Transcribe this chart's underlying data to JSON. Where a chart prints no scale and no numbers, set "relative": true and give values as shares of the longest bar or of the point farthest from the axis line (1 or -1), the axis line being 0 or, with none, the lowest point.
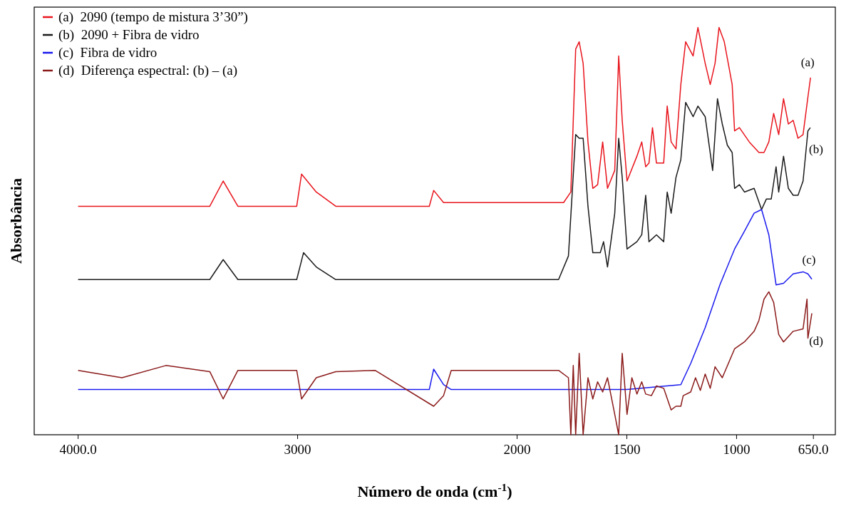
{
  "chart_data": {
    "type": "line",
    "relative": true,
    "xlabel": "Número de onda (cm$^{-1}$)",
    "ylabel": "Absorbância",
    "xlim": [
      4200,
      550
    ],
    "xticks": [
      {
        "value": 4000,
        "label": "4000.0"
      },
      3000,
      2000,
      1500,
      1000,
      {
        "value": 650,
        "label": "650.0"
      }
    ],
    "grid": false,
    "legend": "top left",
    "marker": "none",
    "line_style": "solid",
    "series": [
      {
        "name": "(a)  2090 (tempo de mistura 3’30”)",
        "color": "#e8141c",
        "x": [
          4000,
          3400,
          3339,
          3272,
          3004,
          2982,
          2915,
          2826,
          2400,
          2380,
          2335,
          1811,
          1788,
          1755,
          1733,
          1717,
          1699,
          1677,
          1655,
          1633,
          1610,
          1588,
          1555,
          1537,
          1521,
          1499,
          1454,
          1432,
          1414,
          1399,
          1383,
          1365,
          1332,
          1316,
          1298,
          1276,
          1254,
          1232,
          1198,
          1176,
          1143,
          1120,
          1098,
          1080,
          1056,
          1020,
          1009,
          987,
          942,
          898,
          875,
          853,
          831,
          808,
          786,
          764,
          742,
          720,
          697,
          674,
          663
        ],
        "values": [
          0.561,
          0.561,
          0.623,
          0.561,
          0.561,
          0.64,
          0.596,
          0.561,
          0.561,
          0.6,
          0.57,
          0.57,
          0.57,
          0.596,
          0.947,
          0.965,
          0.912,
          0.719,
          0.605,
          0.614,
          0.719,
          0.605,
          0.649,
          0.93,
          0.772,
          0.623,
          0.684,
          0.719,
          0.658,
          0.667,
          0.754,
          0.667,
          0.667,
          0.807,
          0.719,
          0.702,
          0.86,
          0.965,
          0.93,
          1,
          0.912,
          0.86,
          0.912,
          1,
          0.965,
          0.86,
          0.746,
          0.754,
          0.719,
          0.693,
          0.693,
          0.719,
          0.789,
          0.737,
          0.825,
          0.763,
          0.772,
          0.728,
          0.737,
          0.833,
          0.877
        ]
      },
      {
        "name": "(b)  2090 + Fibra de vidro",
        "color": "#1a1a1a",
        "x": [
          4000,
          3400,
          3339,
          3272,
          3004,
          2973,
          2915,
          2826,
          1811,
          1766,
          1733,
          1717,
          1699,
          1677,
          1655,
          1621,
          1606,
          1588,
          1555,
          1537,
          1521,
          1499,
          1454,
          1432,
          1414,
          1399,
          1365,
          1332,
          1316,
          1298,
          1276,
          1254,
          1232,
          1198,
          1176,
          1143,
          1109,
          1087,
          1065,
          1042,
          1020,
          1009,
          987,
          964,
          920,
          886,
          864,
          842,
          820,
          808,
          786,
          764,
          742,
          720,
          697,
          675,
          664
        ],
        "values": [
          0.381,
          0.381,
          0.43,
          0.381,
          0.381,
          0.447,
          0.412,
          0.381,
          0.381,
          0.439,
          0.737,
          0.728,
          0.728,
          0.561,
          0.447,
          0.447,
          0.474,
          0.412,
          0.544,
          0.728,
          0.632,
          0.456,
          0.474,
          0.491,
          0.588,
          0.474,
          0.491,
          0.474,
          0.596,
          0.544,
          0.632,
          0.675,
          0.816,
          0.781,
          0.807,
          0.781,
          0.649,
          0.825,
          0.763,
          0.711,
          0.693,
          0.605,
          0.614,
          0.596,
          0.605,
          0.553,
          0.579,
          0.579,
          0.658,
          0.596,
          0.684,
          0.605,
          0.588,
          0.588,
          0.623,
          0.746,
          0.754
        ]
      },
      {
        "name": "(c)  Fibra de vidro",
        "color": "#1a1aee",
        "x": [
          4000,
          3000,
          2400,
          2380,
          2335,
          2300,
          2000,
          1500,
          1254,
          1209,
          1143,
          1076,
          1009,
          964,
          920,
          886,
          853,
          820,
          786,
          742,
          697,
          675,
          657
        ],
        "values": [
          0.111,
          0.111,
          0.111,
          0.161,
          0.123,
          0.111,
          0.111,
          0.111,
          0.123,
          0.175,
          0.263,
          0.368,
          0.456,
          0.5,
          0.544,
          0.553,
          0.491,
          0.368,
          0.372,
          0.395,
          0.4,
          0.395,
          0.382
        ]
      },
      {
        "name": "(d)  Diferença espectral: (b) – (a)",
        "color": "#8b1a1a",
        "x": [
          4000,
          3800,
          3600,
          3400,
          3339,
          3272,
          3004,
          2982,
          2915,
          2826,
          2647,
          2380,
          2335,
          2300,
          2000,
          1811,
          1766,
          1755,
          1744,
          1733,
          1717,
          1699,
          1677,
          1655,
          1633,
          1610,
          1588,
          1555,
          1537,
          1521,
          1499,
          1477,
          1454,
          1432,
          1414,
          1388,
          1365,
          1332,
          1298,
          1276,
          1254,
          1243,
          1209,
          1187,
          1165,
          1143,
          1120,
          1098,
          1065,
          1009,
          964,
          920,
          898,
          875,
          853,
          831,
          808,
          786,
          742,
          697,
          679,
          675,
          657
        ],
        "values": [
          0.158,
          0.14,
          0.17,
          0.155,
          0.088,
          0.158,
          0.158,
          0.088,
          0.14,
          0.155,
          0.158,
          0.07,
          0.096,
          0.158,
          0.158,
          0.158,
          0.14,
          0,
          0.17,
          0,
          0.2,
          0,
          0.14,
          0.088,
          0.13,
          0.105,
          0.14,
          0.05,
          0,
          0.2,
          0.05,
          0.14,
          0.1,
          0.13,
          0.1,
          0.096,
          0.12,
          0.114,
          0.061,
          0.07,
          0.07,
          0.096,
          0.105,
          0.14,
          0.109,
          0.149,
          0.114,
          0.167,
          0.14,
          0.211,
          0.228,
          0.254,
          0.281,
          0.333,
          0.351,
          0.325,
          0.246,
          0.228,
          0.254,
          0.26,
          0.333,
          0.237,
          0.298
        ]
      }
    ],
    "annotations": [
      "(a)",
      "(b)",
      "(c)",
      "(d)"
    ]
  }
}
